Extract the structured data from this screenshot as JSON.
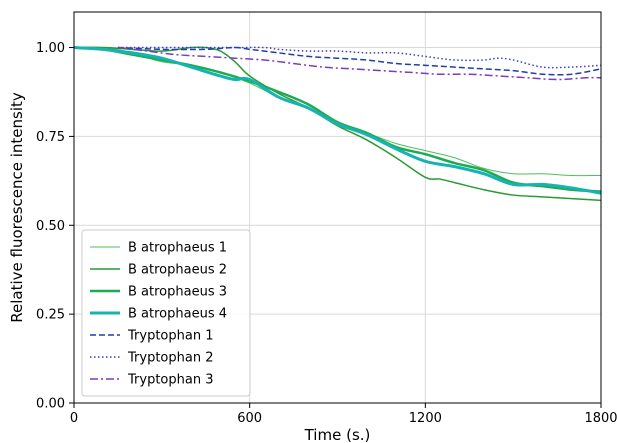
{
  "chart_data": {
    "type": "line",
    "xlabel": "Time (s.)",
    "ylabel": "Relative fluorescence intensity",
    "xlim": [
      0,
      1800
    ],
    "ylim": [
      0.0,
      1.1
    ],
    "xticks": [
      0,
      600,
      1200,
      1800
    ],
    "xtick_labels": [
      "0",
      "600",
      "1200",
      "1800"
    ],
    "yticks": [
      0.0,
      0.25,
      0.5,
      0.75,
      1.0
    ],
    "ytick_labels": [
      "0.00",
      "0.25",
      "0.50",
      "0.75",
      "1.00"
    ],
    "grid": true,
    "legend_position": "lower-left",
    "series": [
      {
        "name": "B atrophaeus 1",
        "color": "#4cc05a",
        "style": "solid",
        "width": 1,
        "x": [
          0,
          100,
          200,
          300,
          400,
          500,
          600,
          700,
          800,
          900,
          1000,
          1100,
          1200,
          1300,
          1400,
          1500,
          1600,
          1700,
          1800
        ],
        "y": [
          1.0,
          1.0,
          0.985,
          0.96,
          0.95,
          0.93,
          0.9,
          0.86,
          0.83,
          0.79,
          0.76,
          0.73,
          0.71,
          0.69,
          0.66,
          0.645,
          0.645,
          0.64,
          0.64
        ]
      },
      {
        "name": "B atrophaeus 2",
        "color": "#2a9a35",
        "style": "solid",
        "width": 1.5,
        "x": [
          0,
          100,
          200,
          300,
          400,
          450,
          500,
          550,
          600,
          700,
          800,
          900,
          1000,
          1100,
          1200,
          1250,
          1300,
          1400,
          1500,
          1600,
          1700,
          1800
        ],
        "y": [
          1.0,
          1.0,
          0.995,
          0.99,
          1.0,
          1.0,
          0.99,
          0.96,
          0.92,
          0.87,
          0.83,
          0.78,
          0.74,
          0.69,
          0.635,
          0.63,
          0.62,
          0.6,
          0.585,
          0.58,
          0.575,
          0.57
        ]
      },
      {
        "name": "B atrophaeus 3",
        "color": "#1daa55",
        "style": "solid",
        "width": 2.5,
        "x": [
          0,
          100,
          200,
          300,
          400,
          500,
          600,
          700,
          800,
          900,
          1000,
          1100,
          1200,
          1300,
          1400,
          1500,
          1600,
          1700,
          1800
        ],
        "y": [
          1.0,
          0.995,
          0.98,
          0.965,
          0.95,
          0.93,
          0.905,
          0.875,
          0.84,
          0.79,
          0.76,
          0.72,
          0.7,
          0.675,
          0.655,
          0.62,
          0.61,
          0.6,
          0.595
        ]
      },
      {
        "name": "B atrophaeus 4",
        "color": "#17b3b0",
        "style": "solid",
        "width": 3,
        "x": [
          0,
          100,
          200,
          300,
          400,
          500,
          550,
          600,
          700,
          800,
          900,
          1000,
          1100,
          1200,
          1300,
          1400,
          1500,
          1600,
          1700,
          1800
        ],
        "y": [
          1.0,
          0.995,
          0.985,
          0.97,
          0.945,
          0.92,
          0.91,
          0.91,
          0.86,
          0.83,
          0.785,
          0.755,
          0.715,
          0.68,
          0.665,
          0.645,
          0.615,
          0.615,
          0.605,
          0.59
        ]
      },
      {
        "name": "Tryptophan 1",
        "color": "#1f3fa6",
        "style": "dashed",
        "width": 1.5,
        "x": [
          150,
          300,
          450,
          550,
          600,
          700,
          800,
          900,
          1000,
          1100,
          1200,
          1300,
          1400,
          1500,
          1600,
          1700,
          1800
        ],
        "y": [
          1.0,
          0.995,
          0.995,
          1.0,
          0.995,
          0.985,
          0.975,
          0.97,
          0.965,
          0.955,
          0.95,
          0.945,
          0.94,
          0.935,
          0.925,
          0.925,
          0.94
        ]
      },
      {
        "name": "Tryptophan 2",
        "color": "#3a3ccf",
        "style": "dotted",
        "width": 1.5,
        "x": [
          150,
          250,
          350,
          450,
          550,
          650,
          700,
          800,
          900,
          1000,
          1100,
          1200,
          1300,
          1400,
          1450,
          1500,
          1600,
          1700,
          1800
        ],
        "y": [
          1.0,
          1.0,
          1.0,
          1.0,
          1.0,
          1.0,
          0.995,
          0.99,
          0.99,
          0.985,
          0.985,
          0.975,
          0.965,
          0.965,
          0.97,
          0.965,
          0.945,
          0.945,
          0.95
        ]
      },
      {
        "name": "Tryptophan 3",
        "color": "#7a3cc0",
        "style": "dashdot",
        "width": 1.5,
        "x": [
          150,
          250,
          350,
          450,
          550,
          650,
          750,
          850,
          950,
          1050,
          1150,
          1250,
          1350,
          1450,
          1550,
          1650,
          1750,
          1800
        ],
        "y": [
          1.0,
          0.99,
          0.98,
          0.975,
          0.97,
          0.965,
          0.955,
          0.945,
          0.94,
          0.935,
          0.93,
          0.925,
          0.925,
          0.92,
          0.915,
          0.91,
          0.915,
          0.915
        ]
      }
    ]
  }
}
